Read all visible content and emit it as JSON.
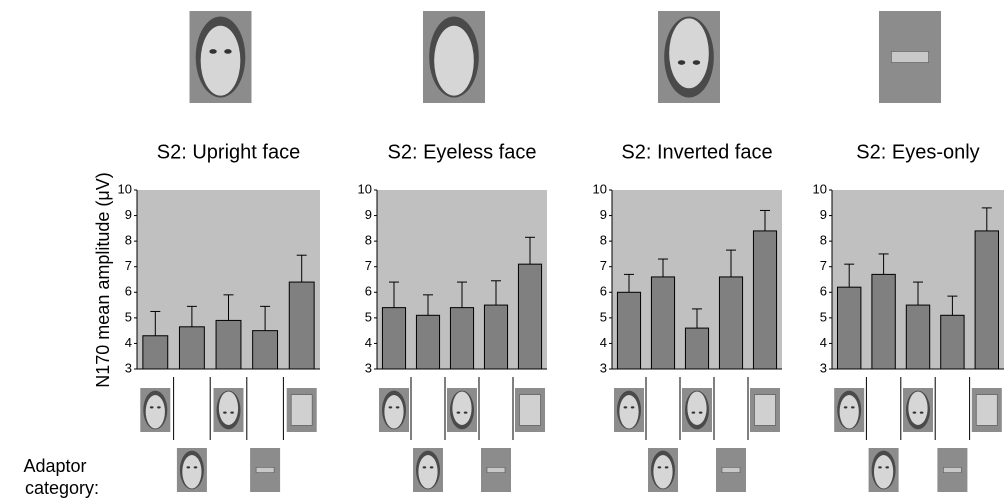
{
  "chart_data": [
    {
      "type": "bar",
      "title": "S2: Upright face",
      "values": [
        4.3,
        4.65,
        4.9,
        4.5,
        6.4
      ],
      "errors": [
        0.95,
        0.8,
        1.0,
        0.95,
        1.05
      ],
      "color": "#808080",
      "background": "#c0c0c0",
      "ylim": [
        3,
        10
      ],
      "yticks": [
        3,
        4,
        5,
        6,
        7,
        8,
        9,
        10
      ]
    },
    {
      "type": "bar",
      "title": "S2: Eyeless face",
      "values": [
        5.4,
        5.1,
        5.4,
        5.5,
        7.1
      ],
      "errors": [
        1.0,
        0.8,
        1.0,
        0.95,
        1.05
      ],
      "color": "#808080",
      "background": "#c0c0c0",
      "ylim": [
        3,
        10
      ],
      "yticks": [
        3,
        4,
        5,
        6,
        7,
        8,
        9,
        10
      ]
    },
    {
      "type": "bar",
      "title": "S2: Inverted face",
      "values": [
        6.0,
        6.6,
        4.6,
        6.6,
        8.4
      ],
      "errors": [
        0.7,
        0.7,
        0.75,
        1.05,
        0.8
      ],
      "color": "#808080",
      "background": "#c0c0c0",
      "ylim": [
        3,
        10
      ],
      "yticks": [
        3,
        4,
        5,
        6,
        7,
        8,
        9,
        10
      ]
    },
    {
      "type": "bar",
      "title": "S2: Eyes-only",
      "values": [
        6.2,
        6.7,
        5.5,
        5.1,
        8.4
      ],
      "errors": [
        0.9,
        0.8,
        0.9,
        0.75,
        0.9
      ],
      "color": "#808080",
      "background": "#c0c0c0",
      "ylim": [
        3,
        10
      ],
      "yticks": [
        3,
        4,
        5,
        6,
        7,
        8,
        9,
        10
      ]
    }
  ],
  "y_axis_label": "N170 mean amplitude (μV)",
  "adaptor_label": [
    "Adaptor",
    "category:"
  ]
}
